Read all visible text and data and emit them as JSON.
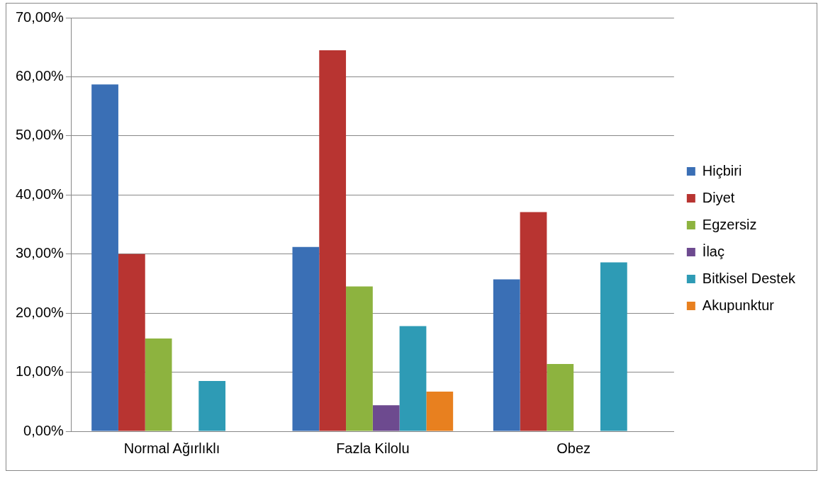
{
  "chart_data": {
    "type": "bar",
    "categories": [
      "Normal Ağırlıklı",
      "Fazla Kilolu",
      "Obez"
    ],
    "series": [
      {
        "name": "Hiçbiri",
        "color": "#3a6fb5",
        "values": [
          58.7,
          31.2,
          25.7
        ]
      },
      {
        "name": "Diyet",
        "color": "#b83431",
        "values": [
          30.0,
          64.5,
          37.1
        ]
      },
      {
        "name": "Egzersiz",
        "color": "#8db33f",
        "values": [
          15.7,
          24.5,
          11.4
        ]
      },
      {
        "name": "İlaç",
        "color": "#6d4a8f",
        "values": [
          0,
          4.4,
          0
        ]
      },
      {
        "name": "Bitkisel Destek",
        "color": "#2e9bb5",
        "values": [
          8.5,
          17.8,
          28.6
        ]
      },
      {
        "name": "Akupunktur",
        "color": "#e8801f",
        "values": [
          0,
          6.7,
          0
        ]
      }
    ],
    "ylim": [
      0,
      70
    ],
    "yticks": [
      {
        "value": 0,
        "label": "0,00%"
      },
      {
        "value": 10,
        "label": "10,00%"
      },
      {
        "value": 20,
        "label": "20,00%"
      },
      {
        "value": 30,
        "label": "30,00%"
      },
      {
        "value": 40,
        "label": "40,00%"
      },
      {
        "value": 50,
        "label": "50,00%"
      },
      {
        "value": 60,
        "label": "60,00%"
      },
      {
        "value": 70,
        "label": "70,00%"
      }
    ],
    "grid": "y",
    "legend": "right"
  }
}
